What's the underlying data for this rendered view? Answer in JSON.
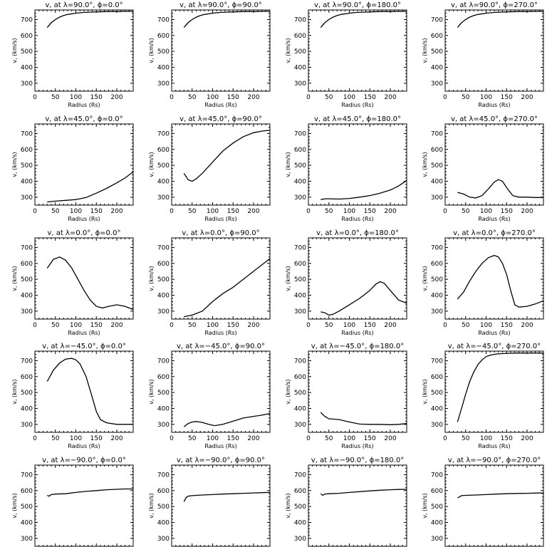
{
  "chart_data": [
    {
      "type": "line",
      "title": "v, at λ=90.0°, ϕ=0.0°",
      "xlabel": "Radius (Rs)",
      "ylabel": "v, (km/s)",
      "xlim": [
        0,
        240
      ],
      "ylim": [
        250,
        760
      ],
      "xticks": [
        0,
        50,
        100,
        150,
        200
      ],
      "yticks": [
        300,
        400,
        500,
        600,
        700
      ],
      "grid": false,
      "series": [
        {
          "x": [
            30,
            40,
            50,
            60,
            70,
            80,
            100,
            120,
            150,
            180,
            200,
            220,
            240
          ],
          "y": [
            650,
            680,
            700,
            715,
            725,
            732,
            740,
            745,
            748,
            750,
            750,
            751,
            752
          ]
        }
      ]
    },
    {
      "type": "line",
      "title": "v, at λ=90.0°, ϕ=90.0°",
      "xlabel": "Radius (Rs)",
      "ylabel": "v, (km/s)",
      "xlim": [
        0,
        240
      ],
      "ylim": [
        250,
        760
      ],
      "xticks": [
        0,
        50,
        100,
        150,
        200
      ],
      "yticks": [
        300,
        400,
        500,
        600,
        700
      ],
      "grid": false,
      "series": [
        {
          "x": [
            30,
            40,
            50,
            60,
            70,
            80,
            100,
            120,
            150,
            180,
            200,
            220,
            240
          ],
          "y": [
            650,
            680,
            700,
            715,
            725,
            732,
            740,
            745,
            748,
            750,
            750,
            751,
            752
          ]
        }
      ]
    },
    {
      "type": "line",
      "title": "v, at λ=90.0°, ϕ=180.0°",
      "xlabel": "Radius (Rs)",
      "ylabel": "v, (km/s)",
      "xlim": [
        0,
        240
      ],
      "ylim": [
        250,
        760
      ],
      "xticks": [
        0,
        50,
        100,
        150,
        200
      ],
      "yticks": [
        300,
        400,
        500,
        600,
        700
      ],
      "grid": false,
      "series": [
        {
          "x": [
            30,
            40,
            50,
            60,
            70,
            80,
            100,
            120,
            150,
            180,
            200,
            220,
            240
          ],
          "y": [
            650,
            680,
            700,
            715,
            725,
            732,
            740,
            745,
            748,
            750,
            750,
            751,
            752
          ]
        }
      ]
    },
    {
      "type": "line",
      "title": "v, at λ=90.0°, ϕ=270.0°",
      "xlabel": "Radius (Rs)",
      "ylabel": "v, (km/s)",
      "xlim": [
        0,
        240
      ],
      "ylim": [
        250,
        760
      ],
      "xticks": [
        0,
        50,
        100,
        150,
        200
      ],
      "yticks": [
        300,
        400,
        500,
        600,
        700
      ],
      "grid": false,
      "series": [
        {
          "x": [
            30,
            40,
            50,
            60,
            70,
            80,
            100,
            120,
            150,
            180,
            200,
            220,
            240
          ],
          "y": [
            650,
            680,
            700,
            715,
            725,
            732,
            740,
            745,
            748,
            750,
            750,
            751,
            752
          ]
        }
      ]
    },
    {
      "type": "line",
      "title": "v, at λ=45.0°, ϕ=0.0°",
      "xlabel": "Radius (Rs)",
      "ylabel": "v, (km/s)",
      "xlim": [
        0,
        240
      ],
      "ylim": [
        250,
        760
      ],
      "xticks": [
        0,
        50,
        100,
        150,
        200
      ],
      "yticks": [
        300,
        400,
        500,
        600,
        700
      ],
      "grid": false,
      "series": [
        {
          "x": [
            30,
            50,
            75,
            100,
            125,
            150,
            175,
            200,
            220,
            240
          ],
          "y": [
            270,
            275,
            280,
            285,
            298,
            325,
            355,
            390,
            420,
            460
          ]
        }
      ]
    },
    {
      "type": "line",
      "title": "v, at λ=45.0°, ϕ=90.0°",
      "xlabel": "Radius (Rs)",
      "ylabel": "v, (km/s)",
      "xlim": [
        0,
        240
      ],
      "ylim": [
        250,
        760
      ],
      "xticks": [
        0,
        50,
        100,
        150,
        200
      ],
      "yticks": [
        300,
        400,
        500,
        600,
        700
      ],
      "grid": false,
      "series": [
        {
          "x": [
            30,
            40,
            50,
            60,
            75,
            100,
            125,
            150,
            175,
            200,
            220,
            240
          ],
          "y": [
            450,
            410,
            400,
            415,
            450,
            520,
            590,
            640,
            680,
            705,
            715,
            720
          ]
        }
      ]
    },
    {
      "type": "line",
      "title": "v, at λ=45.0°, ϕ=180.0°",
      "xlabel": "Radius (Rs)",
      "ylabel": "v, (km/s)",
      "xlim": [
        0,
        240
      ],
      "ylim": [
        250,
        760
      ],
      "xticks": [
        0,
        50,
        100,
        150,
        200
      ],
      "yticks": [
        300,
        400,
        500,
        600,
        700
      ],
      "grid": false,
      "series": [
        {
          "x": [
            30,
            40,
            50,
            75,
            100,
            125,
            150,
            175,
            200,
            220,
            240
          ],
          "y": [
            285,
            290,
            290,
            288,
            292,
            300,
            310,
            325,
            345,
            370,
            405
          ]
        }
      ]
    },
    {
      "type": "line",
      "title": "v, at λ=45.0°, ϕ=270.0°",
      "xlabel": "Radius (Rs)",
      "ylabel": "v, (km/s)",
      "xlim": [
        0,
        240
      ],
      "ylim": [
        250,
        760
      ],
      "xticks": [
        0,
        50,
        100,
        150,
        200
      ],
      "yticks": [
        300,
        400,
        500,
        600,
        700
      ],
      "grid": false,
      "series": [
        {
          "x": [
            30,
            45,
            60,
            75,
            90,
            105,
            120,
            130,
            140,
            150,
            165,
            180,
            200,
            220,
            240
          ],
          "y": [
            330,
            320,
            300,
            295,
            310,
            350,
            395,
            410,
            400,
            360,
            310,
            300,
            300,
            298,
            298
          ]
        }
      ]
    },
    {
      "type": "line",
      "title": "v, at λ=0.0°, ϕ=0.0°",
      "xlabel": "Radius (Rs)",
      "ylabel": "v, (km/s)",
      "xlim": [
        0,
        240
      ],
      "ylim": [
        250,
        760
      ],
      "xticks": [
        0,
        50,
        100,
        150,
        200
      ],
      "yticks": [
        300,
        400,
        500,
        600,
        700
      ],
      "grid": false,
      "series": [
        {
          "x": [
            30,
            45,
            60,
            75,
            90,
            105,
            120,
            135,
            150,
            165,
            180,
            200,
            220,
            240
          ],
          "y": [
            570,
            625,
            640,
            620,
            570,
            500,
            430,
            370,
            330,
            320,
            330,
            340,
            330,
            310
          ]
        }
      ]
    },
    {
      "type": "line",
      "title": "v, at λ=0.0°, ϕ=90.0°",
      "xlabel": "Radius (Rs)",
      "ylabel": "v, (km/s)",
      "xlim": [
        0,
        240
      ],
      "ylim": [
        250,
        760
      ],
      "xticks": [
        0,
        50,
        100,
        150,
        200
      ],
      "yticks": [
        300,
        400,
        500,
        600,
        700
      ],
      "grid": false,
      "series": [
        {
          "x": [
            30,
            50,
            75,
            100,
            125,
            150,
            175,
            200,
            220,
            240
          ],
          "y": [
            265,
            275,
            300,
            360,
            410,
            450,
            500,
            550,
            590,
            630
          ]
        }
      ]
    },
    {
      "type": "line",
      "title": "v, at λ=0.0°, ϕ=180.0°",
      "xlabel": "Radius (Rs)",
      "ylabel": "v, (km/s)",
      "xlim": [
        0,
        240
      ],
      "ylim": [
        250,
        760
      ],
      "xticks": [
        0,
        50,
        100,
        150,
        200
      ],
      "yticks": [
        300,
        400,
        500,
        600,
        700
      ],
      "grid": false,
      "series": [
        {
          "x": [
            30,
            40,
            50,
            60,
            75,
            100,
            125,
            150,
            165,
            175,
            185,
            200,
            220,
            240
          ],
          "y": [
            295,
            290,
            275,
            280,
            300,
            340,
            380,
            430,
            470,
            485,
            475,
            430,
            370,
            350
          ]
        }
      ]
    },
    {
      "type": "line",
      "title": "v, at λ=0.0°, ϕ=270.0°",
      "xlabel": "Radius (Rs)",
      "ylabel": "v, (km/s)",
      "xlim": [
        0,
        240
      ],
      "ylim": [
        250,
        760
      ],
      "xticks": [
        0,
        50,
        100,
        150,
        200
      ],
      "yticks": [
        300,
        400,
        500,
        600,
        700
      ],
      "grid": false,
      "series": [
        {
          "x": [
            30,
            45,
            60,
            75,
            90,
            105,
            120,
            130,
            140,
            150,
            160,
            170,
            180,
            200,
            220,
            240
          ],
          "y": [
            375,
            420,
            490,
            550,
            600,
            635,
            650,
            640,
            600,
            530,
            430,
            340,
            325,
            330,
            345,
            365
          ]
        }
      ]
    },
    {
      "type": "line",
      "title": "v, at λ=−45.0°, ϕ=0.0°",
      "xlabel": "Radius (Rs)",
      "ylabel": "v, (km/s)",
      "xlim": [
        0,
        240
      ],
      "ylim": [
        250,
        760
      ],
      "xticks": [
        0,
        50,
        100,
        150,
        200
      ],
      "yticks": [
        300,
        400,
        500,
        600,
        700
      ],
      "grid": false,
      "series": [
        {
          "x": [
            30,
            45,
            60,
            75,
            90,
            100,
            110,
            125,
            140,
            150,
            160,
            175,
            200,
            220,
            240
          ],
          "y": [
            570,
            640,
            685,
            710,
            715,
            705,
            680,
            600,
            470,
            380,
            330,
            310,
            300,
            300,
            300
          ]
        }
      ]
    },
    {
      "type": "line",
      "title": "v, at λ=−45.0°, ϕ=90.0°",
      "xlabel": "Radius (Rs)",
      "ylabel": "v, (km/s)",
      "xlim": [
        0,
        240
      ],
      "ylim": [
        250,
        760
      ],
      "xticks": [
        0,
        50,
        100,
        150,
        200
      ],
      "yticks": [
        300,
        400,
        500,
        600,
        700
      ],
      "grid": false,
      "series": [
        {
          "x": [
            30,
            40,
            50,
            60,
            75,
            90,
            105,
            125,
            150,
            175,
            200,
            220,
            240
          ],
          "y": [
            285,
            305,
            315,
            318,
            312,
            300,
            292,
            300,
            320,
            340,
            350,
            358,
            368
          ]
        }
      ]
    },
    {
      "type": "line",
      "title": "v, at λ=−45.0°, ϕ=180.0°",
      "xlabel": "Radius (Rs)",
      "ylabel": "v, (km/s)",
      "xlim": [
        0,
        240
      ],
      "ylim": [
        250,
        760
      ],
      "xticks": [
        0,
        50,
        100,
        150,
        200
      ],
      "yticks": [
        300,
        400,
        500,
        600,
        700
      ],
      "grid": false,
      "series": [
        {
          "x": [
            30,
            40,
            50,
            60,
            75,
            100,
            125,
            150,
            175,
            200,
            220,
            240
          ],
          "y": [
            375,
            350,
            335,
            333,
            330,
            315,
            302,
            300,
            300,
            298,
            300,
            305
          ]
        }
      ]
    },
    {
      "type": "line",
      "title": "v, at λ=−45.0°, ϕ=270.0°",
      "xlabel": "Radius (Rs)",
      "ylabel": "v, (km/s)",
      "xlim": [
        0,
        240
      ],
      "ylim": [
        250,
        760
      ],
      "xticks": [
        0,
        50,
        100,
        150,
        200
      ],
      "yticks": [
        300,
        400,
        500,
        600,
        700
      ],
      "grid": false,
      "series": [
        {
          "x": [
            30,
            40,
            50,
            60,
            70,
            80,
            90,
            100,
            110,
            125,
            150,
            175,
            200,
            220,
            240
          ],
          "y": [
            315,
            400,
            490,
            570,
            630,
            675,
            705,
            725,
            735,
            742,
            746,
            748,
            748,
            748,
            748
          ]
        }
      ]
    },
    {
      "type": "line",
      "title": "v, at λ=−90.0°, ϕ=0.0°",
      "xlabel": "Radius (Rs)",
      "ylabel": "v, (km/s)",
      "xlim": [
        0,
        240
      ],
      "ylim": [
        250,
        760
      ],
      "xticks": [
        0,
        50,
        100,
        150,
        200
      ],
      "yticks": [
        300,
        400,
        500,
        600,
        700
      ],
      "grid": false,
      "series": [
        {
          "x": [
            30,
            35,
            40,
            50,
            75,
            100,
            125,
            150,
            175,
            200,
            220,
            240
          ],
          "y": [
            570,
            565,
            575,
            578,
            580,
            588,
            595,
            600,
            605,
            608,
            610,
            610
          ]
        }
      ]
    },
    {
      "type": "line",
      "title": "v, at λ=−90.0°, ϕ=90.0°",
      "xlabel": "Radius (Rs)",
      "ylabel": "v, (km/s)",
      "xlim": [
        0,
        240
      ],
      "ylim": [
        250,
        760
      ],
      "xticks": [
        0,
        50,
        100,
        150,
        200
      ],
      "yticks": [
        300,
        400,
        500,
        600,
        700
      ],
      "grid": false,
      "series": [
        {
          "x": [
            30,
            35,
            40,
            50,
            75,
            100,
            125,
            150,
            175,
            200,
            220,
            240
          ],
          "y": [
            530,
            555,
            565,
            568,
            572,
            575,
            578,
            580,
            583,
            585,
            587,
            588
          ]
        }
      ]
    },
    {
      "type": "line",
      "title": "v, at λ=−90.0°, ϕ=180.0°",
      "xlabel": "Radius (Rs)",
      "ylabel": "v, (km/s)",
      "xlim": [
        0,
        240
      ],
      "ylim": [
        250,
        760
      ],
      "xticks": [
        0,
        50,
        100,
        150,
        200
      ],
      "yticks": [
        300,
        400,
        500,
        600,
        700
      ],
      "grid": false,
      "series": [
        {
          "x": [
            30,
            35,
            40,
            50,
            75,
            100,
            125,
            150,
            175,
            200,
            220,
            240
          ],
          "y": [
            580,
            570,
            578,
            580,
            583,
            588,
            593,
            598,
            602,
            605,
            607,
            608
          ]
        }
      ]
    },
    {
      "type": "line",
      "title": "v, at λ=−90.0°, ϕ=270.0°",
      "xlabel": "Radius (Rs)",
      "ylabel": "v, (km/s)",
      "xlim": [
        0,
        240
      ],
      "ylim": [
        250,
        760
      ],
      "xticks": [
        0,
        50,
        100,
        150,
        200
      ],
      "yticks": [
        300,
        400,
        500,
        600,
        700
      ],
      "grid": false,
      "series": [
        {
          "x": [
            30,
            35,
            40,
            50,
            75,
            100,
            125,
            150,
            175,
            200,
            220,
            240
          ],
          "y": [
            555,
            560,
            568,
            570,
            572,
            575,
            578,
            580,
            582,
            583,
            584,
            585
          ]
        }
      ]
    }
  ]
}
